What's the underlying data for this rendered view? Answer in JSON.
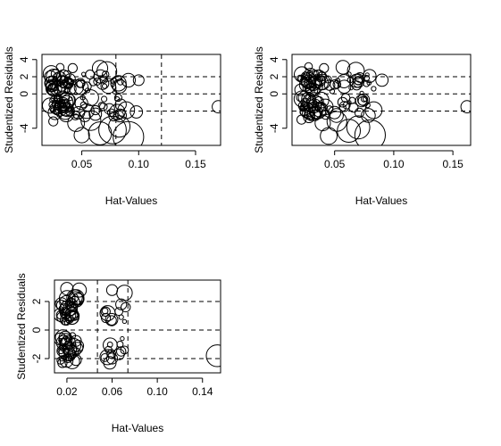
{
  "chart_data": [
    {
      "type": "scatter",
      "title": "",
      "xlabel": "Hat-Values",
      "ylabel": "Studentized Residuals",
      "xlim": [
        0.015,
        0.172
      ],
      "ylim": [
        -6,
        4.6
      ],
      "x_ticks": [
        0.05,
        0.1,
        0.15
      ],
      "x_tick_labels": [
        "0.05",
        "0.10",
        "0.15"
      ],
      "y_ticks": [
        -4,
        0,
        2,
        4
      ],
      "y_tick_labels": [
        "-4",
        "0",
        "2",
        "4"
      ],
      "hlines": [
        -2,
        0,
        2
      ],
      "vlines": [
        0.08,
        0.12
      ],
      "grid": false,
      "legend": "none",
      "markers": "open circles sized by Cook's distance",
      "points": [
        [
          0.031,
          3.1,
          0.1
        ],
        [
          0.042,
          3.0,
          0.12
        ],
        [
          0.066,
          3.0,
          0.2
        ],
        [
          0.072,
          2.6,
          0.26
        ],
        [
          0.091,
          1.6,
          0.18
        ],
        [
          0.1,
          1.6,
          0.14
        ],
        [
          0.06,
          1.4,
          0.1
        ],
        [
          0.078,
          1.5,
          0.08
        ],
        [
          0.084,
          1.4,
          0.08
        ],
        [
          0.07,
          0.9,
          0.06
        ],
        [
          0.089,
          -1.9,
          0.22
        ],
        [
          0.098,
          -2.1,
          0.16
        ],
        [
          0.069,
          -1.5,
          0.1
        ],
        [
          0.062,
          -1.9,
          0.12
        ],
        [
          0.076,
          -2.2,
          0.1
        ],
        [
          0.17,
          -1.5,
          0.16
        ],
        [
          0.058,
          -3.1,
          0.26
        ],
        [
          0.045,
          -3.4,
          0.22
        ],
        [
          0.083,
          -3.8,
          0.28
        ],
        [
          0.077,
          -4.2,
          0.36
        ],
        [
          0.066,
          -4.6,
          0.3
        ],
        [
          0.091,
          -5.0,
          0.4
        ],
        [
          0.05,
          -4.8,
          0.2
        ],
        [
          0.025,
          -3.2,
          0.12
        ],
        [
          0.028,
          -2.0,
          0.1
        ],
        [
          0.047,
          -2.2,
          0.16
        ],
        [
          0.055,
          0.4,
          0.06
        ],
        [
          0.049,
          1.2,
          0.1
        ],
        [
          0.079,
          0.2,
          0.05
        ],
        [
          0.081,
          -0.6,
          0.06
        ]
      ],
      "dense_clusters": [
        {
          "x_range": [
            0.022,
            0.04
          ],
          "y_range": [
            0.4,
            2.4
          ],
          "n": 34
        },
        {
          "x_range": [
            0.022,
            0.04
          ],
          "y_range": [
            -2.8,
            -0.4
          ],
          "n": 34
        },
        {
          "x_range": [
            0.04,
            0.085
          ],
          "y_range": [
            0.6,
            2.4
          ],
          "n": 18
        },
        {
          "x_range": [
            0.04,
            0.085
          ],
          "y_range": [
            -2.6,
            -0.4
          ],
          "n": 18
        }
      ]
    },
    {
      "type": "scatter",
      "title": "",
      "xlabel": "Hat-Values",
      "ylabel": "Studentized Residuals",
      "xlim": [
        0.014,
        0.165
      ],
      "ylim": [
        -6,
        4.6
      ],
      "x_ticks": [
        0.05,
        0.1,
        0.15
      ],
      "x_tick_labels": [
        "0.05",
        "0.10",
        "0.15"
      ],
      "y_ticks": [
        -4,
        0,
        2,
        4
      ],
      "y_tick_labels": [
        "-4",
        "0",
        "2",
        "4"
      ],
      "hlines": [
        -2,
        0,
        2
      ],
      "vlines": [],
      "grid": false,
      "legend": "none",
      "markers": "open circles sized by Cook's distance",
      "points": [
        [
          0.028,
          3.2,
          0.1
        ],
        [
          0.041,
          3.0,
          0.12
        ],
        [
          0.057,
          3.1,
          0.18
        ],
        [
          0.068,
          2.7,
          0.22
        ],
        [
          0.09,
          1.6,
          0.16
        ],
        [
          0.07,
          1.5,
          0.1
        ],
        [
          0.077,
          1.2,
          0.08
        ],
        [
          0.083,
          0.6,
          0.06
        ],
        [
          0.083,
          -1.9,
          0.22
        ],
        [
          0.066,
          -1.6,
          0.12
        ],
        [
          0.071,
          -2.2,
          0.12
        ],
        [
          0.162,
          -1.5,
          0.16
        ],
        [
          0.052,
          -3.2,
          0.26
        ],
        [
          0.04,
          -3.4,
          0.2
        ],
        [
          0.07,
          -3.9,
          0.3
        ],
        [
          0.062,
          -4.3,
          0.3
        ],
        [
          0.08,
          -4.8,
          0.4
        ],
        [
          0.045,
          -4.9,
          0.22
        ],
        [
          0.022,
          -3.0,
          0.12
        ],
        [
          0.024,
          -2.1,
          0.1
        ],
        [
          0.048,
          0.3,
          0.06
        ],
        [
          0.052,
          1.1,
          0.1
        ],
        [
          0.073,
          0.1,
          0.05
        ],
        [
          0.076,
          -0.6,
          0.06
        ]
      ],
      "dense_clusters": [
        {
          "x_range": [
            0.02,
            0.04
          ],
          "y_range": [
            0.4,
            2.4
          ],
          "n": 34
        },
        {
          "x_range": [
            0.02,
            0.04
          ],
          "y_range": [
            -2.8,
            -0.4
          ],
          "n": 34
        },
        {
          "x_range": [
            0.04,
            0.08
          ],
          "y_range": [
            0.6,
            2.4
          ],
          "n": 18
        },
        {
          "x_range": [
            0.04,
            0.08
          ],
          "y_range": [
            -2.6,
            -0.4
          ],
          "n": 18
        }
      ]
    },
    {
      "type": "scatter",
      "title": "",
      "xlabel": "Hat-Values",
      "ylabel": "Studentized Residuals",
      "xlim": [
        0.009,
        0.156
      ],
      "ylim": [
        -3,
        3.5
      ],
      "x_ticks": [
        0.02,
        0.06,
        0.1,
        0.14
      ],
      "x_tick_labels": [
        "0.02",
        "0.06",
        "0.10",
        "0.14"
      ],
      "y_ticks": [
        -2,
        0,
        2
      ],
      "y_tick_labels": [
        "-2",
        "0",
        "2"
      ],
      "hlines": [
        -2,
        0,
        2
      ],
      "vlines": [
        0.047,
        0.074
      ],
      "grid": false,
      "legend": "none",
      "markers": "open circles sized by Cook's distance",
      "points": [
        [
          0.02,
          2.9,
          0.16
        ],
        [
          0.031,
          2.8,
          0.18
        ],
        [
          0.06,
          2.8,
          0.14
        ],
        [
          0.071,
          2.6,
          0.2
        ],
        [
          0.068,
          1.8,
          0.14
        ],
        [
          0.066,
          1.3,
          0.1
        ],
        [
          0.072,
          1.6,
          0.12
        ],
        [
          0.068,
          0.9,
          0.06
        ],
        [
          0.071,
          0.6,
          0.05
        ],
        [
          0.069,
          -0.6,
          0.05
        ],
        [
          0.067,
          -1.0,
          0.08
        ],
        [
          0.068,
          -1.5,
          0.12
        ],
        [
          0.066,
          -1.7,
          0.14
        ],
        [
          0.071,
          -1.4,
          0.1
        ],
        [
          0.06,
          -2.0,
          0.14
        ],
        [
          0.058,
          -2.3,
          0.16
        ],
        [
          0.153,
          -1.8,
          0.28
        ],
        [
          0.028,
          -2.1,
          0.14
        ],
        [
          0.016,
          -2.3,
          0.12
        ],
        [
          0.025,
          -0.4,
          0.08
        ],
        [
          0.02,
          0.5,
          0.06
        ]
      ],
      "dense_clusters": [
        {
          "x_range": [
            0.014,
            0.03
          ],
          "y_range": [
            0.6,
            2.3
          ],
          "n": 36
        },
        {
          "x_range": [
            0.014,
            0.03
          ],
          "y_range": [
            -2.3,
            -0.5
          ],
          "n": 36
        },
        {
          "x_range": [
            0.052,
            0.06
          ],
          "y_range": [
            0.6,
            1.9
          ],
          "n": 6
        },
        {
          "x_range": [
            0.052,
            0.06
          ],
          "y_range": [
            -2.0,
            -0.6
          ],
          "n": 6
        }
      ]
    }
  ]
}
